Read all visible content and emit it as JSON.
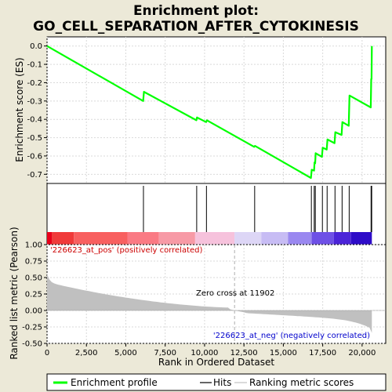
{
  "chart_data": {
    "type": "line",
    "title_line1": "Enrichment plot:",
    "title_line2": "GO_CELL_SEPARATION_AFTER_CYTOKINESIS",
    "es_ylabel": "Enrichment score (ES)",
    "rank_ylabel": "Ranked list metric (Pearson)",
    "xlabel": "Rank in Ordered Dataset",
    "xlim": [
      0,
      21500
    ],
    "es_ylim": [
      -0.75,
      0.05
    ],
    "rank_ylim": [
      -0.5,
      1.0
    ],
    "x_ticks": [
      0,
      2500,
      5000,
      7500,
      10000,
      12500,
      15000,
      17500,
      20000
    ],
    "x_tick_labels": [
      "0",
      "2,500",
      "5,000",
      "7,500",
      "10,000",
      "12,500",
      "15,000",
      "17,500",
      "20,000"
    ],
    "es_ticks": [
      0.0,
      -0.1,
      -0.2,
      -0.3,
      -0.4,
      -0.5,
      -0.6,
      -0.7
    ],
    "es_tick_labels": [
      "0.0",
      "-0.1",
      "-0.2",
      "-0.3",
      "-0.4",
      "-0.5",
      "-0.6",
      "-0.7"
    ],
    "rank_ticks": [
      1.0,
      0.75,
      0.5,
      0.25,
      0.0,
      -0.25,
      -0.5
    ],
    "rank_tick_labels": [
      "1.00",
      "0.75",
      "0.50",
      "0.25",
      "0.00",
      "-0.25",
      "-0.50"
    ],
    "es_profile": [
      [
        0,
        0.0
      ],
      [
        6100,
        -0.3
      ],
      [
        6150,
        -0.25
      ],
      [
        9480,
        -0.405
      ],
      [
        9520,
        -0.39
      ],
      [
        10100,
        -0.415
      ],
      [
        10150,
        -0.405
      ],
      [
        13150,
        -0.55
      ],
      [
        13200,
        -0.545
      ],
      [
        16750,
        -0.72
      ],
      [
        16800,
        -0.675
      ],
      [
        16950,
        -0.68
      ],
      [
        16980,
        -0.635
      ],
      [
        17020,
        -0.64
      ],
      [
        17050,
        -0.585
      ],
      [
        17450,
        -0.605
      ],
      [
        17500,
        -0.555
      ],
      [
        17750,
        -0.565
      ],
      [
        17800,
        -0.51
      ],
      [
        18250,
        -0.53
      ],
      [
        18300,
        -0.47
      ],
      [
        18700,
        -0.485
      ],
      [
        18750,
        -0.415
      ],
      [
        19150,
        -0.435
      ],
      [
        19200,
        -0.27
      ],
      [
        20550,
        -0.335
      ],
      [
        20580,
        -0.18
      ],
      [
        20600,
        -0.18
      ],
      [
        20620,
        0.0
      ]
    ],
    "hits": [
      6120,
      9500,
      10120,
      13180,
      16780,
      16960,
      17030,
      17480,
      17780,
      18280,
      18730,
      19180,
      20570,
      20610
    ],
    "gradient_colors": [
      "#e8001a",
      "#f03a3a",
      "#f86060",
      "#fa7a84",
      "#f79aa6",
      "#f6c2dc",
      "#ddd6f6",
      "#c7bcf4",
      "#9a88f0",
      "#6e50e6",
      "#4b24d8",
      "#2e0cc8"
    ],
    "pos_label": "'226623_at_pos' (positively correlated)",
    "neg_label": "'226623_at_neg' (negatively correlated)",
    "zero_cross_label": "Zero cross at 11902",
    "zero_cross": 11902,
    "legend": [
      "Enrichment profile",
      "Hits",
      "Ranking metric scores"
    ],
    "colors": {
      "profile": "#00ff00",
      "hits": "#000000",
      "metric": "#c0c0c0",
      "pos_text": "#cc0000",
      "neg_text": "#0000cc"
    }
  }
}
